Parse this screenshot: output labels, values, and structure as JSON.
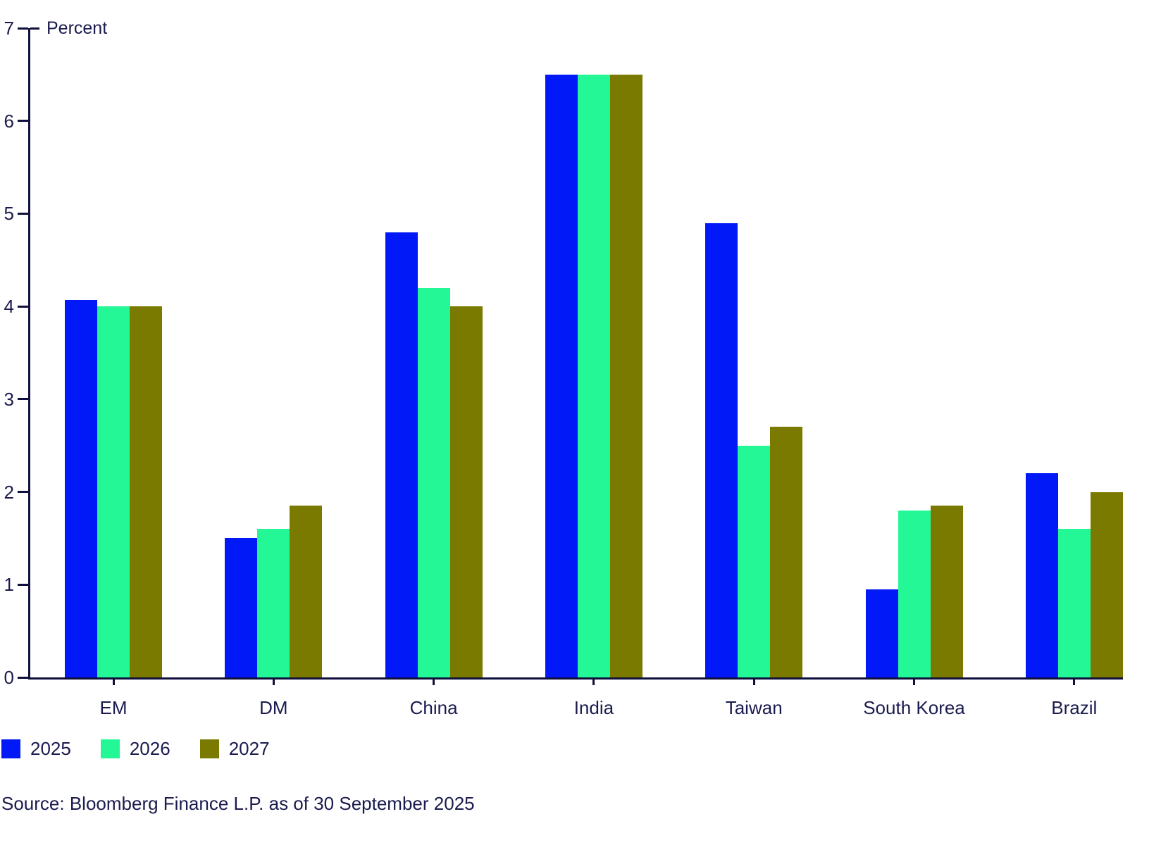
{
  "chart_data": {
    "type": "bar",
    "title": "",
    "ylabel": "Percent",
    "xlabel": "",
    "ylim": [
      0,
      7
    ],
    "y_ticks": [
      0,
      1,
      2,
      3,
      4,
      5,
      6,
      7
    ],
    "grid": false,
    "legend_position": "bottom-left",
    "categories": [
      "EM",
      "DM",
      "China",
      "India",
      "Taiwan",
      "South Korea",
      "Brazil"
    ],
    "series": [
      {
        "name": "2025",
        "color": "#0119f7",
        "values": [
          4.07,
          1.5,
          4.8,
          6.5,
          4.9,
          0.95,
          2.2
        ]
      },
      {
        "name": "2026",
        "color": "#24f896",
        "values": [
          4.0,
          1.6,
          4.2,
          6.5,
          2.5,
          1.8,
          1.6
        ]
      },
      {
        "name": "2027",
        "color": "#7b7a00",
        "values": [
          4.0,
          1.85,
          4.0,
          6.5,
          2.7,
          1.85,
          2.0
        ]
      }
    ]
  },
  "source": "Source: Bloomberg Finance L.P. as of 30 September 2025",
  "colors": {
    "text_navy": "#1b1b4f",
    "axis_navy": "#10103c",
    "background": "#ffffff"
  }
}
